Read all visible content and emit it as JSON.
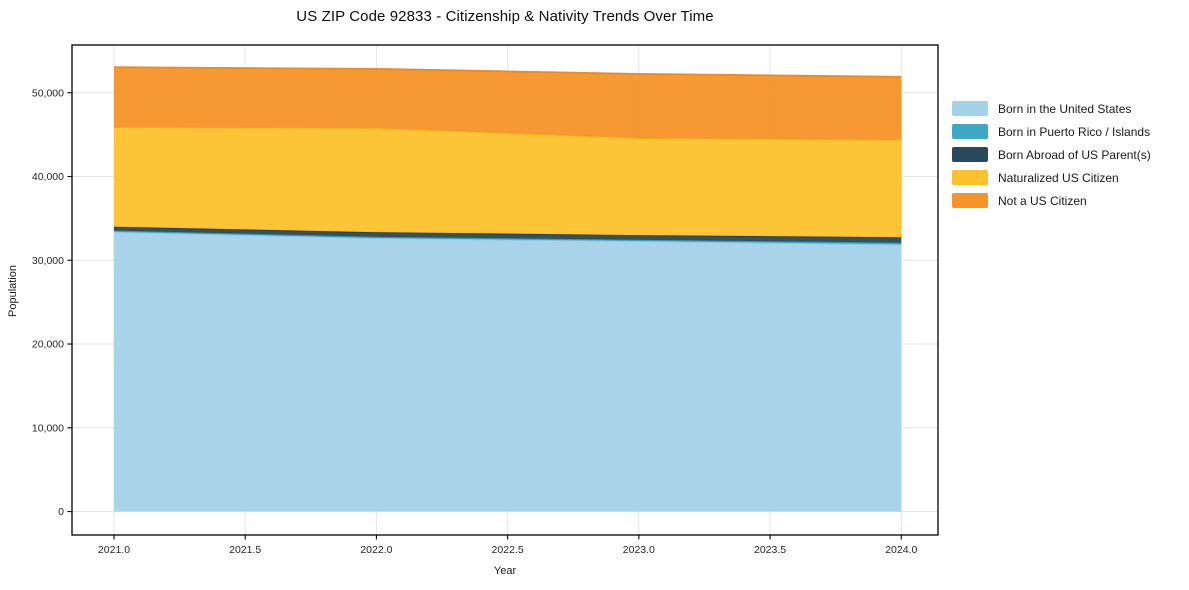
{
  "chart_data": {
    "type": "area",
    "stacked": true,
    "title": "US ZIP Code 92833 - Citizenship & Nativity Trends Over Time",
    "xlabel": "Year",
    "ylabel": "Population",
    "x": [
      2021,
      2022,
      2023,
      2024
    ],
    "series": [
      {
        "name": "Born in the United States",
        "color": "#a3d1e8",
        "edge": "#8cc3e0",
        "values": [
          33400,
          32650,
          32300,
          31900
        ]
      },
      {
        "name": "Born in Puerto Rico / Islands",
        "color": "#3fa8c4",
        "edge": "#3695af",
        "values": [
          150,
          150,
          150,
          200
        ]
      },
      {
        "name": "Born Abroad of US Parent(s)",
        "color": "#26495c",
        "edge": "#1d3a4a",
        "values": [
          450,
          550,
          550,
          650
        ]
      },
      {
        "name": "Naturalized US Citizen",
        "color": "#fcc22d",
        "edge": "#eeaf10",
        "values": [
          11900,
          12450,
          11600,
          11650
        ]
      },
      {
        "name": "Not a US Citizen",
        "color": "#f79428",
        "edge": "#ec8312",
        "values": [
          7150,
          7050,
          7650,
          7500
        ]
      }
    ],
    "totals": [
      53050,
      52850,
      52250,
      51900
    ],
    "xlim": [
      2020.84,
      2024.14
    ],
    "ylim": [
      -2800,
      55700
    ],
    "xticks": [
      2021.0,
      2021.5,
      2022.0,
      2022.5,
      2023.0,
      2023.5,
      2024.0
    ],
    "yticks": [
      0,
      10000,
      20000,
      30000,
      40000,
      50000
    ],
    "grid": true,
    "grid_color": "#e4e4e4",
    "axis_color": "#000000",
    "tick_label_color": "#262626",
    "legend_position": "right"
  }
}
